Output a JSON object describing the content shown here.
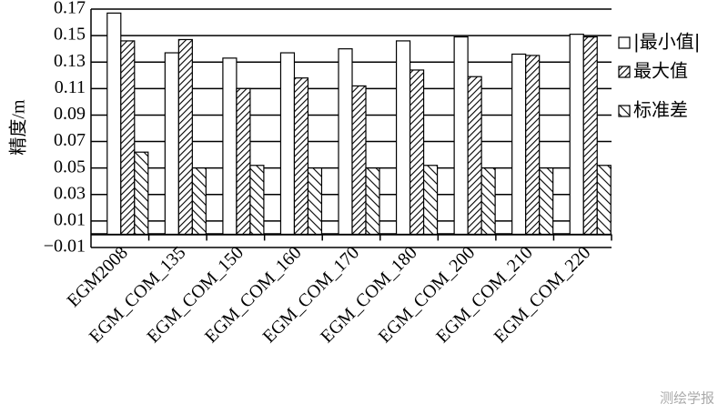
{
  "chart_data": {
    "type": "bar",
    "ylabel": "精度/m",
    "categories": [
      "EGM2008",
      "EGM_COM_135",
      "EGM_COM_150",
      "EGM_COM_160",
      "EGM_COM_170",
      "EGM_COM_180",
      "EGM_COM_200",
      "EGM_COM_210",
      "EGM_COM_220"
    ],
    "series": [
      {
        "name": "|最小值|",
        "color": "#ffffff",
        "hatch": "none",
        "values": [
          0.167,
          0.137,
          0.133,
          0.137,
          0.14,
          0.146,
          0.149,
          0.136,
          0.151
        ]
      },
      {
        "name": "最大值",
        "color": "#ffffff",
        "hatch": "backslash",
        "values": [
          0.146,
          0.147,
          0.11,
          0.118,
          0.112,
          0.124,
          0.119,
          0.135,
          0.149
        ]
      },
      {
        "name": "标准差",
        "color": "#ffffff",
        "hatch": "slash",
        "values": [
          0.062,
          0.05,
          0.052,
          0.05,
          0.05,
          0.052,
          0.05,
          0.05,
          0.052
        ]
      }
    ],
    "ylim": [
      -0.01,
      0.17
    ],
    "yticks": [
      {
        "value": -0.01,
        "label": "−0.01"
      },
      0.01,
      0.03,
      0.05,
      0.07,
      0.09,
      0.11,
      0.13,
      0.15,
      0.17
    ],
    "grid": true,
    "legend": "right",
    "watermark": "测绘学报"
  }
}
